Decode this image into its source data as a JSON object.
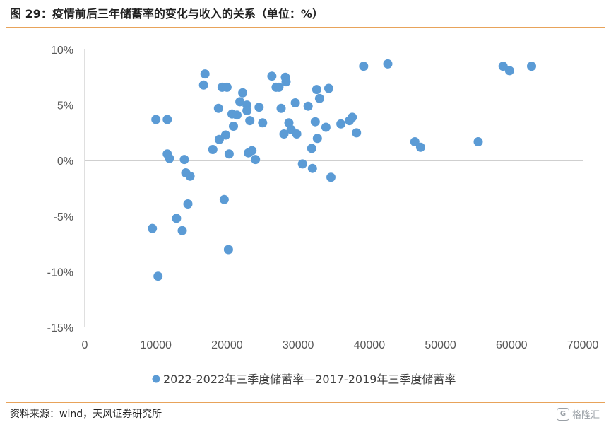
{
  "header": {
    "title": "图 29：疫情前后三年储蓄率的变化与收入的关系（单位：%）"
  },
  "footer": {
    "source": "资料来源：wind，天风证券研究所",
    "watermark": "格隆汇"
  },
  "colors": {
    "accent_rule": "#e8a35a",
    "marker": "#5b9bd5",
    "axis": "#bfbfbf"
  },
  "chart_data": {
    "type": "scatter",
    "title": "",
    "xlabel": "",
    "ylabel": "",
    "xlim": [
      0,
      70000
    ],
    "ylim": [
      -15,
      10
    ],
    "x_ticks": [
      0,
      10000,
      20000,
      30000,
      40000,
      50000,
      60000,
      70000
    ],
    "x_tick_labels": [
      "0",
      "10000",
      "20000",
      "30000",
      "40000",
      "50000",
      "60000",
      "70000"
    ],
    "y_ticks": [
      10,
      5,
      0,
      -5,
      -10,
      -15
    ],
    "y_tick_labels": [
      "10%",
      "5%",
      "0%",
      "-5%",
      "-10%",
      "-15%"
    ],
    "grid": false,
    "legend_position": "bottom",
    "series": [
      {
        "name": "2022-2022年三季度储蓄率—2017-2019年三季度储蓄率",
        "points": [
          [
            9500,
            -6.1
          ],
          [
            10300,
            -10.4
          ],
          [
            10000,
            3.7
          ],
          [
            11600,
            3.7
          ],
          [
            11600,
            0.6
          ],
          [
            11900,
            0.2
          ],
          [
            12900,
            -5.2
          ],
          [
            13700,
            -6.3
          ],
          [
            14000,
            0.1
          ],
          [
            14200,
            -1.1
          ],
          [
            14500,
            -3.9
          ],
          [
            14800,
            -1.4
          ],
          [
            16700,
            6.8
          ],
          [
            16900,
            7.8
          ],
          [
            18000,
            1.0
          ],
          [
            18800,
            4.7
          ],
          [
            18900,
            1.9
          ],
          [
            19300,
            6.6
          ],
          [
            19600,
            -3.5
          ],
          [
            19800,
            2.3
          ],
          [
            20000,
            6.6
          ],
          [
            20200,
            -8.0
          ],
          [
            20300,
            0.6
          ],
          [
            20700,
            4.2
          ],
          [
            20900,
            3.1
          ],
          [
            21400,
            4.1
          ],
          [
            21800,
            5.3
          ],
          [
            22200,
            6.1
          ],
          [
            22800,
            5.0
          ],
          [
            22800,
            4.5
          ],
          [
            23000,
            0.7
          ],
          [
            23200,
            3.6
          ],
          [
            23500,
            0.9
          ],
          [
            24000,
            0.1
          ],
          [
            24500,
            4.8
          ],
          [
            25000,
            3.4
          ],
          [
            26300,
            7.6
          ],
          [
            26900,
            6.6
          ],
          [
            27300,
            6.6
          ],
          [
            27600,
            4.7
          ],
          [
            28000,
            2.4
          ],
          [
            28200,
            7.5
          ],
          [
            28300,
            7.1
          ],
          [
            28700,
            3.4
          ],
          [
            29000,
            2.8
          ],
          [
            29600,
            5.2
          ],
          [
            29800,
            2.4
          ],
          [
            30600,
            -0.3
          ],
          [
            31400,
            4.9
          ],
          [
            31900,
            1.1
          ],
          [
            32000,
            -0.7
          ],
          [
            32400,
            3.5
          ],
          [
            32600,
            6.4
          ],
          [
            32700,
            2.0
          ],
          [
            33000,
            5.6
          ],
          [
            33900,
            3.0
          ],
          [
            34300,
            6.5
          ],
          [
            34600,
            -1.5
          ],
          [
            36000,
            3.3
          ],
          [
            37200,
            3.6
          ],
          [
            37600,
            3.9
          ],
          [
            38200,
            2.5
          ],
          [
            39200,
            8.5
          ],
          [
            42600,
            8.7
          ],
          [
            46400,
            1.7
          ],
          [
            47200,
            1.2
          ],
          [
            55300,
            1.7
          ],
          [
            58800,
            8.5
          ],
          [
            59700,
            8.1
          ],
          [
            62800,
            8.5
          ]
        ]
      }
    ]
  }
}
